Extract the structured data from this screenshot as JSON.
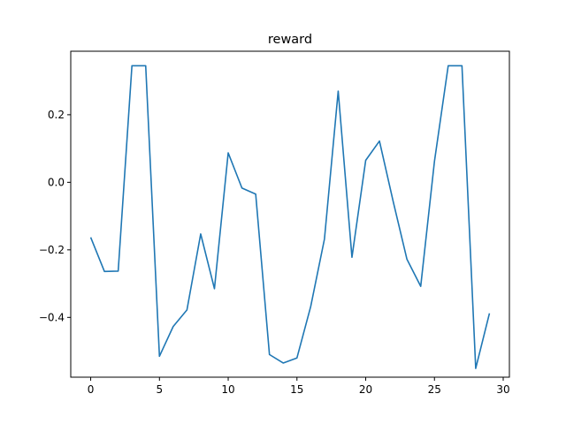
{
  "chart_data": {
    "type": "line",
    "title": "reward",
    "xlabel": "",
    "ylabel": "",
    "xlim": [
      -1.45,
      30.45
    ],
    "ylim": [
      -0.577,
      0.388
    ],
    "xticks": [
      0,
      5,
      10,
      15,
      20,
      25,
      30
    ],
    "xtick_labels": [
      "0",
      "5",
      "10",
      "15",
      "20",
      "25",
      "30"
    ],
    "yticks": [
      -0.4,
      -0.2,
      0.0,
      0.2
    ],
    "ytick_labels": [
      "−0.4",
      "−0.2",
      "0.0",
      "0.2"
    ],
    "grid": false,
    "series": [
      {
        "color": "#1f77b4",
        "x": [
          0,
          1,
          2,
          3,
          4,
          5,
          6,
          7,
          8,
          9,
          10,
          11,
          12,
          13,
          14,
          15,
          16,
          17,
          18,
          19,
          20,
          21,
          22,
          23,
          24,
          25,
          26,
          27,
          28,
          29
        ],
        "values": [
          -0.163,
          -0.264,
          -0.263,
          0.345,
          0.345,
          -0.515,
          -0.427,
          -0.378,
          -0.153,
          -0.315,
          0.087,
          -0.017,
          -0.035,
          -0.51,
          -0.535,
          -0.52,
          -0.368,
          -0.168,
          0.27,
          -0.222,
          0.065,
          0.122,
          -0.057,
          -0.228,
          -0.308,
          0.062,
          0.345,
          0.345,
          -0.551,
          -0.388
        ]
      }
    ]
  }
}
